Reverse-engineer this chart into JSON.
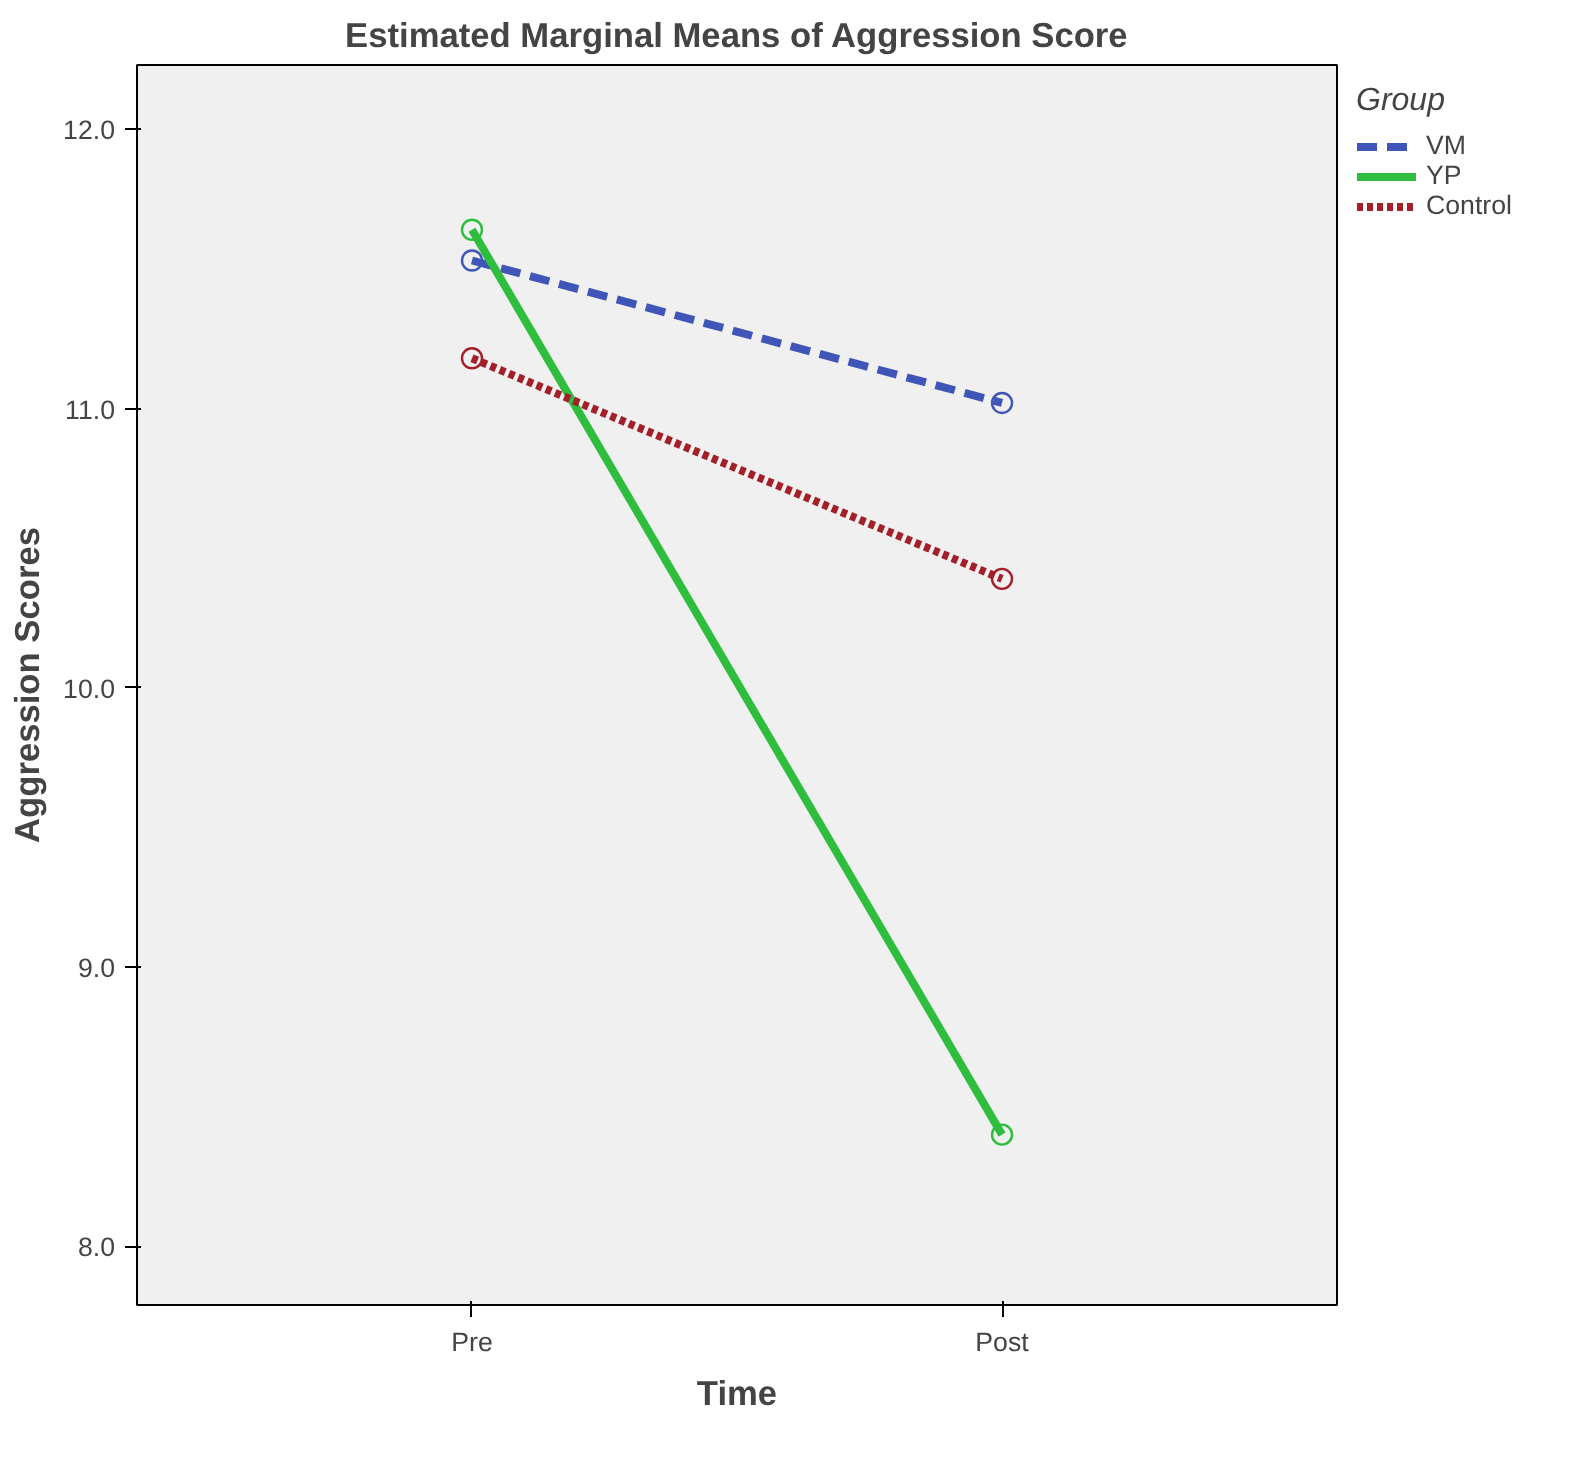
{
  "chart_data": {
    "type": "line",
    "title": "Estimated Marginal Means of Aggression Score",
    "xlabel": "Time",
    "ylabel": "Aggression Scores",
    "legend_title": "Group",
    "categories": [
      "Pre",
      "Post"
    ],
    "series": [
      {
        "name": "VM",
        "color": "#3f56b8",
        "values": [
          11.53,
          11.02
        ],
        "line_style": "dashed"
      },
      {
        "name": "YP",
        "color": "#2ebd3c",
        "values": [
          11.64,
          8.4
        ],
        "line_style": "solid"
      },
      {
        "name": "Control",
        "color": "#a3202a",
        "values": [
          11.18,
          10.39
        ],
        "line_style": "dotted"
      }
    ],
    "ylim": [
      7.79,
      12.23
    ],
    "yticks": [
      {
        "value": 8,
        "label": "8.0"
      },
      {
        "value": 9,
        "label": "9.0"
      },
      {
        "value": 10,
        "label": "10.0"
      },
      {
        "value": 11,
        "label": "11.0"
      },
      {
        "value": 12,
        "label": "12.0"
      }
    ],
    "marker": "circle",
    "grid": false,
    "legend": "top right"
  }
}
